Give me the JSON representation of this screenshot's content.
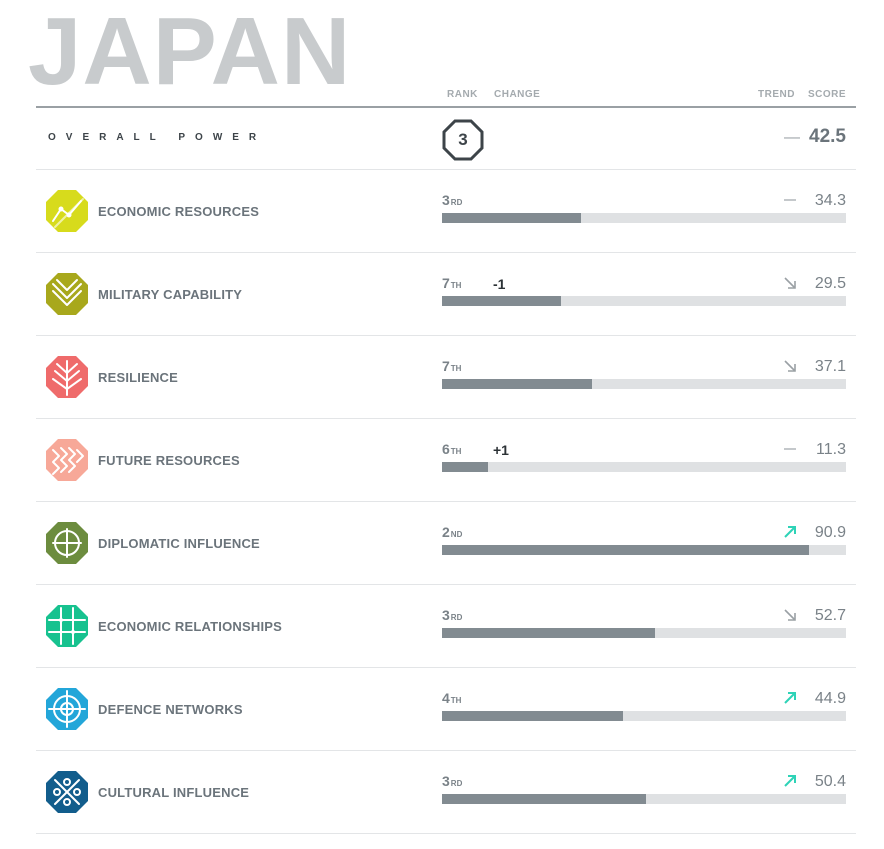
{
  "country": "JAPAN",
  "columns": {
    "rank": "RANK",
    "change": "CHANGE",
    "trend": "TREND",
    "score": "SCORE"
  },
  "overall": {
    "label": "OVERALL POWER",
    "rank": "3",
    "trend": "flat",
    "trend_symbol": "—",
    "score": "42.5"
  },
  "colors": {
    "bar_fill": "#828b91",
    "bar_track": "#dfe1e3",
    "trend_up": "#2ed3b7",
    "trend_down": "#9aa0a4"
  },
  "measures": [
    {
      "label": "ECONOMIC RESOURCES",
      "rank": "3",
      "suffix": "RD",
      "change": "",
      "trend": "flat",
      "score": "34.3",
      "score_value": 34.3,
      "icon": "economic-resources-icon",
      "color": "#d7db1c"
    },
    {
      "label": "MILITARY CAPABILITY",
      "rank": "7",
      "suffix": "TH",
      "change": "-1",
      "trend": "down",
      "score": "29.5",
      "score_value": 29.5,
      "icon": "military-capability-icon",
      "color": "#a8a81c"
    },
    {
      "label": "RESILIENCE",
      "rank": "7",
      "suffix": "TH",
      "change": "",
      "trend": "down",
      "score": "37.1",
      "score_value": 37.1,
      "icon": "resilience-icon",
      "color": "#ef6b6b"
    },
    {
      "label": "FUTURE RESOURCES",
      "rank": "6",
      "suffix": "TH",
      "change": "+1",
      "trend": "flat",
      "score": "11.3",
      "score_value": 11.3,
      "icon": "future-resources-icon",
      "color": "#f7a898"
    },
    {
      "label": "DIPLOMATIC INFLUENCE",
      "rank": "2",
      "suffix": "ND",
      "change": "",
      "trend": "up",
      "score": "90.9",
      "score_value": 90.9,
      "icon": "diplomatic-influence-icon",
      "color": "#6c8c3e"
    },
    {
      "label": "ECONOMIC RELATIONSHIPS",
      "rank": "3",
      "suffix": "RD",
      "change": "",
      "trend": "down",
      "score": "52.7",
      "score_value": 52.7,
      "icon": "economic-relationships-icon",
      "color": "#17c28f"
    },
    {
      "label": "DEFENCE NETWORKS",
      "rank": "4",
      "suffix": "TH",
      "change": "",
      "trend": "up",
      "score": "44.9",
      "score_value": 44.9,
      "icon": "defence-networks-icon",
      "color": "#23a6d9"
    },
    {
      "label": "CULTURAL INFLUENCE",
      "rank": "3",
      "suffix": "RD",
      "change": "",
      "trend": "up",
      "score": "50.4",
      "score_value": 50.4,
      "icon": "cultural-influence-icon",
      "color": "#125d8c"
    }
  ]
}
